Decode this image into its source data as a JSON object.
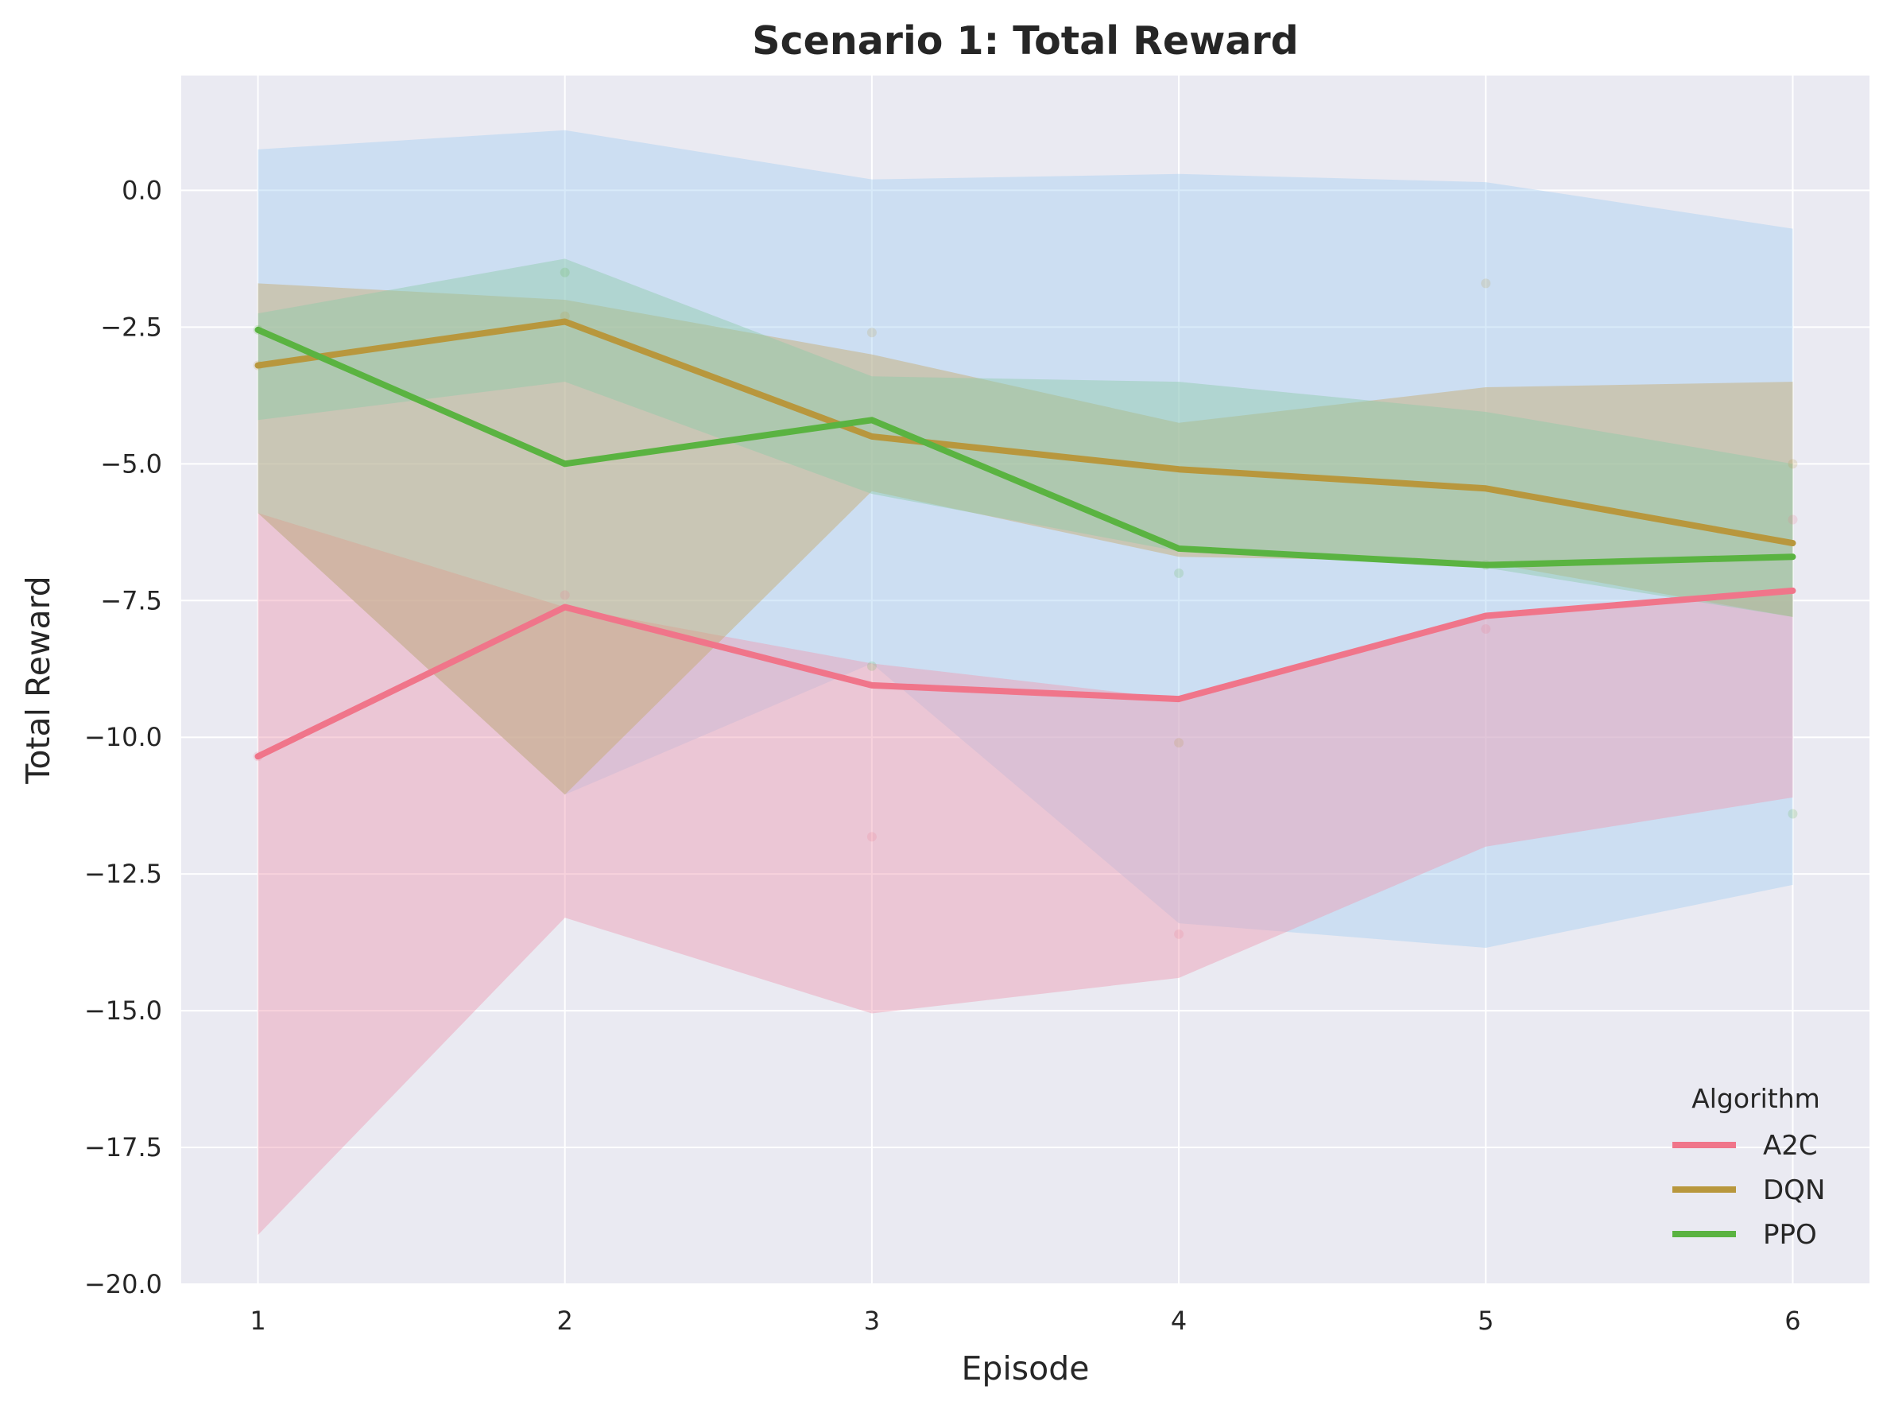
{
  "chart_data": {
    "type": "line",
    "title": "Scenario 1: Total Reward",
    "xlabel": "Episode",
    "ylabel": "Total Reward",
    "x": [
      1,
      2,
      3,
      4,
      5,
      6
    ],
    "xlim": [
      0.75,
      6.25
    ],
    "ylim": [
      -20,
      2.1
    ],
    "yticks": [
      0.0,
      -2.5,
      -5.0,
      -7.5,
      -10.0,
      -12.5,
      -15.0,
      -17.5,
      -20.0
    ],
    "ytick_labels": [
      "0.0",
      "−2.5",
      "−5.0",
      "−7.5",
      "−10.0",
      "−12.5",
      "−15.0",
      "−17.5",
      "−20.0"
    ],
    "xtick_labels": [
      "1",
      "2",
      "3",
      "4",
      "5",
      "6"
    ],
    "grid": true,
    "legend": {
      "title": "Algorithm",
      "placement": "lower-right"
    },
    "series": [
      {
        "name": "A2C",
        "color": "#f0758a",
        "band_color": "#ee9bb1",
        "values": [
          -10.35,
          -7.62,
          -9.05,
          -9.3,
          -7.78,
          -7.32
        ],
        "band_upper": [
          -5.9,
          -7.62,
          -8.65,
          -9.3,
          -7.78,
          -7.32
        ],
        "band_lower": [
          -19.1,
          -13.3,
          -15.05,
          -14.4,
          -12.0,
          -11.1
        ],
        "points": [
          -10.35,
          -7.4,
          -11.82,
          -13.6,
          -8.02,
          -6.02
        ]
      },
      {
        "name": "DQN",
        "color": "#b8973d",
        "band_color": "#c6a86a",
        "values": [
          -3.2,
          -2.4,
          -4.5,
          -5.1,
          -5.45,
          -6.45
        ],
        "band_upper": [
          -1.7,
          -2.0,
          -3.0,
          -4.25,
          -3.6,
          -3.5
        ],
        "band_lower": [
          -5.9,
          -11.05,
          -5.5,
          -6.7,
          -6.8,
          -7.8
        ],
        "points": [
          -3.2,
          -2.3,
          -2.6,
          -10.1,
          -1.7,
          -5.0
        ]
      },
      {
        "name": "PPO",
        "color": "#5ab341",
        "band_color": "#8dc9a8",
        "values": [
          -2.55,
          -5.0,
          -4.2,
          -6.55,
          -6.85,
          -6.7
        ],
        "band_upper": [
          -2.25,
          -1.25,
          -3.4,
          -3.5,
          -4.05,
          -5.0
        ],
        "band_lower": [
          -4.2,
          -3.5,
          -5.55,
          -6.6,
          -6.9,
          -7.8
        ],
        "points": [
          -2.55,
          -1.5,
          -8.7,
          -7.0,
          -6.85,
          -11.4
        ]
      }
    ],
    "extra_band": {
      "band_color": "#a9d1f2",
      "band_upper": [
        0.75,
        1.1,
        0.2,
        0.3,
        0.15,
        -0.7
      ],
      "band_lower": [
        -5.9,
        -11.05,
        -8.65,
        -13.4,
        -13.85,
        -12.7
      ]
    },
    "colors": {
      "plot_background": "#eaeaf2",
      "grid": "#ffffff"
    }
  }
}
